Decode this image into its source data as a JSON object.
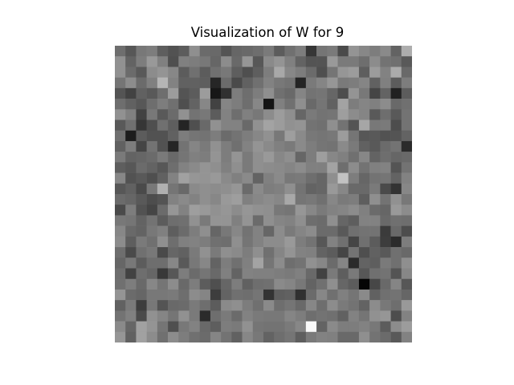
{
  "chart_data": {
    "type": "heatmap",
    "title": "Visualization of W for 9",
    "rows": 28,
    "cols": 28,
    "colormap": "gray",
    "axes_visible": false,
    "values": [
      [
        0.43,
        0.34,
        0.47,
        0.49,
        0.37,
        0.32,
        0.36,
        0.56,
        0.42,
        0.41,
        0.33,
        0.4,
        0.41,
        0.43,
        0.48,
        0.36,
        0.44,
        0.49,
        0.21,
        0.46,
        0.48,
        0.29,
        0.58,
        0.53,
        0.49,
        0.54,
        0.39,
        0.68
      ],
      [
        0.57,
        0.39,
        0.49,
        0.6,
        0.5,
        0.31,
        0.5,
        0.49,
        0.47,
        0.4,
        0.55,
        0.41,
        0.59,
        0.34,
        0.54,
        0.58,
        0.5,
        0.39,
        0.33,
        0.33,
        0.6,
        0.48,
        0.48,
        0.43,
        0.55,
        0.45,
        0.44,
        0.35
      ],
      [
        0.57,
        0.42,
        0.35,
        0.55,
        0.58,
        0.53,
        0.36,
        0.44,
        0.36,
        0.44,
        0.47,
        0.37,
        0.31,
        0.37,
        0.49,
        0.66,
        0.53,
        0.49,
        0.42,
        0.31,
        0.46,
        0.59,
        0.61,
        0.37,
        0.61,
        0.51,
        0.67,
        0.41
      ],
      [
        0.46,
        0.55,
        0.42,
        0.5,
        0.71,
        0.51,
        0.38,
        0.38,
        0.37,
        0.15,
        0.42,
        0.29,
        0.38,
        0.44,
        0.51,
        0.47,
        0.45,
        0.14,
        0.48,
        0.52,
        0.59,
        0.48,
        0.49,
        0.52,
        0.38,
        0.5,
        0.36,
        0.49
      ],
      [
        0.33,
        0.26,
        0.38,
        0.35,
        0.43,
        0.61,
        0.33,
        0.36,
        0.61,
        0.09,
        0.19,
        0.49,
        0.43,
        0.49,
        0.56,
        0.44,
        0.41,
        0.52,
        0.45,
        0.46,
        0.4,
        0.3,
        0.58,
        0.47,
        0.27,
        0.39,
        0.13,
        0.36
      ],
      [
        0.43,
        0.38,
        0.34,
        0.43,
        0.49,
        0.44,
        0.31,
        0.39,
        0.53,
        0.26,
        0.52,
        0.49,
        0.43,
        0.53,
        0.08,
        0.5,
        0.44,
        0.56,
        0.41,
        0.46,
        0.38,
        0.64,
        0.49,
        0.52,
        0.5,
        0.55,
        0.41,
        0.44
      ],
      [
        0.57,
        0.5,
        0.26,
        0.47,
        0.35,
        0.42,
        0.57,
        0.45,
        0.47,
        0.36,
        0.51,
        0.43,
        0.5,
        0.47,
        0.55,
        0.61,
        0.56,
        0.4,
        0.48,
        0.45,
        0.46,
        0.62,
        0.55,
        0.52,
        0.35,
        0.43,
        0.35,
        0.45
      ],
      [
        0.35,
        0.44,
        0.21,
        0.31,
        0.44,
        0.37,
        0.14,
        0.31,
        0.41,
        0.57,
        0.51,
        0.51,
        0.41,
        0.57,
        0.64,
        0.61,
        0.57,
        0.58,
        0.45,
        0.44,
        0.56,
        0.45,
        0.33,
        0.65,
        0.47,
        0.48,
        0.3,
        0.45
      ],
      [
        0.44,
        0.11,
        0.36,
        0.32,
        0.32,
        0.38,
        0.49,
        0.46,
        0.45,
        0.49,
        0.42,
        0.45,
        0.49,
        0.53,
        0.57,
        0.47,
        0.62,
        0.54,
        0.47,
        0.46,
        0.47,
        0.61,
        0.46,
        0.34,
        0.35,
        0.32,
        0.33,
        0.39
      ],
      [
        0.38,
        0.49,
        0.27,
        0.45,
        0.32,
        0.15,
        0.45,
        0.52,
        0.48,
        0.57,
        0.49,
        0.44,
        0.51,
        0.58,
        0.54,
        0.5,
        0.48,
        0.54,
        0.49,
        0.46,
        0.45,
        0.54,
        0.48,
        0.38,
        0.35,
        0.42,
        0.45,
        0.17
      ],
      [
        0.48,
        0.39,
        0.4,
        0.42,
        0.48,
        0.41,
        0.46,
        0.5,
        0.49,
        0.58,
        0.49,
        0.58,
        0.48,
        0.56,
        0.6,
        0.53,
        0.56,
        0.4,
        0.49,
        0.62,
        0.53,
        0.5,
        0.44,
        0.53,
        0.39,
        0.43,
        0.4,
        0.41
      ],
      [
        0.37,
        0.34,
        0.42,
        0.39,
        0.34,
        0.43,
        0.51,
        0.54,
        0.58,
        0.56,
        0.5,
        0.56,
        0.48,
        0.56,
        0.55,
        0.54,
        0.52,
        0.55,
        0.5,
        0.5,
        0.64,
        0.43,
        0.55,
        0.45,
        0.5,
        0.51,
        0.33,
        0.45
      ],
      [
        0.53,
        0.32,
        0.35,
        0.31,
        0.38,
        0.51,
        0.63,
        0.59,
        0.58,
        0.6,
        0.54,
        0.5,
        0.54,
        0.39,
        0.5,
        0.54,
        0.47,
        0.48,
        0.43,
        0.4,
        0.56,
        0.76,
        0.49,
        0.4,
        0.45,
        0.46,
        0.39,
        0.51
      ],
      [
        0.34,
        0.38,
        0.29,
        0.47,
        0.69,
        0.46,
        0.41,
        0.54,
        0.56,
        0.55,
        0.56,
        0.59,
        0.42,
        0.54,
        0.49,
        0.5,
        0.56,
        0.45,
        0.39,
        0.4,
        0.6,
        0.53,
        0.41,
        0.41,
        0.48,
        0.29,
        0.2,
        0.53
      ],
      [
        0.42,
        0.4,
        0.35,
        0.3,
        0.33,
        0.51,
        0.54,
        0.51,
        0.56,
        0.53,
        0.6,
        0.62,
        0.5,
        0.53,
        0.55,
        0.53,
        0.66,
        0.46,
        0.47,
        0.44,
        0.53,
        0.48,
        0.49,
        0.37,
        0.56,
        0.45,
        0.57,
        0.47
      ],
      [
        0.29,
        0.49,
        0.32,
        0.27,
        0.42,
        0.59,
        0.51,
        0.62,
        0.6,
        0.57,
        0.59,
        0.55,
        0.59,
        0.57,
        0.56,
        0.47,
        0.46,
        0.59,
        0.53,
        0.48,
        0.51,
        0.52,
        0.55,
        0.5,
        0.42,
        0.4,
        0.6,
        0.55
      ],
      [
        0.47,
        0.46,
        0.39,
        0.45,
        0.36,
        0.43,
        0.44,
        0.57,
        0.48,
        0.58,
        0.58,
        0.5,
        0.58,
        0.42,
        0.56,
        0.52,
        0.51,
        0.56,
        0.43,
        0.42,
        0.56,
        0.4,
        0.37,
        0.51,
        0.51,
        0.41,
        0.44,
        0.43
      ],
      [
        0.53,
        0.41,
        0.39,
        0.47,
        0.5,
        0.37,
        0.42,
        0.49,
        0.56,
        0.4,
        0.47,
        0.53,
        0.45,
        0.51,
        0.4,
        0.55,
        0.48,
        0.52,
        0.55,
        0.42,
        0.42,
        0.35,
        0.44,
        0.45,
        0.45,
        0.23,
        0.41,
        0.3
      ],
      [
        0.55,
        0.37,
        0.48,
        0.44,
        0.56,
        0.43,
        0.5,
        0.51,
        0.49,
        0.44,
        0.43,
        0.56,
        0.46,
        0.51,
        0.55,
        0.55,
        0.6,
        0.49,
        0.45,
        0.34,
        0.51,
        0.44,
        0.27,
        0.44,
        0.36,
        0.24,
        0.17,
        0.49
      ],
      [
        0.43,
        0.29,
        0.44,
        0.47,
        0.29,
        0.4,
        0.38,
        0.48,
        0.57,
        0.48,
        0.56,
        0.54,
        0.49,
        0.56,
        0.44,
        0.52,
        0.58,
        0.51,
        0.5,
        0.39,
        0.36,
        0.27,
        0.45,
        0.31,
        0.38,
        0.35,
        0.44,
        0.41
      ],
      [
        0.4,
        0.47,
        0.36,
        0.43,
        0.43,
        0.53,
        0.35,
        0.47,
        0.53,
        0.39,
        0.49,
        0.44,
        0.5,
        0.64,
        0.46,
        0.55,
        0.43,
        0.45,
        0.57,
        0.53,
        0.42,
        0.52,
        0.17,
        0.39,
        0.37,
        0.48,
        0.44,
        0.56
      ],
      [
        0.43,
        0.26,
        0.43,
        0.4,
        0.22,
        0.34,
        0.49,
        0.42,
        0.46,
        0.41,
        0.5,
        0.39,
        0.51,
        0.5,
        0.5,
        0.49,
        0.48,
        0.5,
        0.41,
        0.26,
        0.48,
        0.37,
        0.48,
        0.34,
        0.44,
        0.45,
        0.33,
        0.53
      ],
      [
        0.44,
        0.49,
        0.41,
        0.53,
        0.46,
        0.55,
        0.41,
        0.49,
        0.36,
        0.31,
        0.4,
        0.49,
        0.38,
        0.43,
        0.44,
        0.54,
        0.52,
        0.47,
        0.39,
        0.44,
        0.56,
        0.4,
        0.36,
        0.02,
        0.28,
        0.41,
        0.52,
        0.34
      ],
      [
        0.58,
        0.42,
        0.4,
        0.47,
        0.47,
        0.48,
        0.43,
        0.55,
        0.52,
        0.24,
        0.39,
        0.44,
        0.43,
        0.46,
        0.2,
        0.37,
        0.38,
        0.19,
        0.42,
        0.53,
        0.44,
        0.5,
        0.46,
        0.54,
        0.38,
        0.44,
        0.45,
        0.4
      ],
      [
        0.38,
        0.48,
        0.24,
        0.47,
        0.33,
        0.41,
        0.42,
        0.48,
        0.43,
        0.36,
        0.54,
        0.56,
        0.49,
        0.44,
        0.54,
        0.43,
        0.46,
        0.41,
        0.53,
        0.43,
        0.55,
        0.48,
        0.45,
        0.39,
        0.55,
        0.47,
        0.43,
        0.6
      ],
      [
        0.45,
        0.5,
        0.29,
        0.57,
        0.52,
        0.46,
        0.57,
        0.48,
        0.17,
        0.43,
        0.48,
        0.42,
        0.51,
        0.48,
        0.47,
        0.47,
        0.52,
        0.49,
        0.43,
        0.45,
        0.44,
        0.38,
        0.51,
        0.46,
        0.57,
        0.59,
        0.3,
        0.51
      ],
      [
        0.54,
        0.4,
        0.63,
        0.58,
        0.46,
        0.31,
        0.47,
        0.51,
        0.41,
        0.37,
        0.49,
        0.48,
        0.57,
        0.46,
        0.45,
        0.45,
        0.48,
        0.53,
        0.98,
        0.39,
        0.54,
        0.49,
        0.49,
        0.51,
        0.47,
        0.36,
        0.55,
        0.61
      ],
      [
        0.59,
        0.38,
        0.63,
        0.55,
        0.44,
        0.55,
        0.49,
        0.44,
        0.42,
        0.52,
        0.45,
        0.38,
        0.53,
        0.47,
        0.39,
        0.43,
        0.46,
        0.37,
        0.48,
        0.51,
        0.5,
        0.41,
        0.41,
        0.56,
        0.45,
        0.42,
        0.35,
        0.51
      ]
    ]
  }
}
